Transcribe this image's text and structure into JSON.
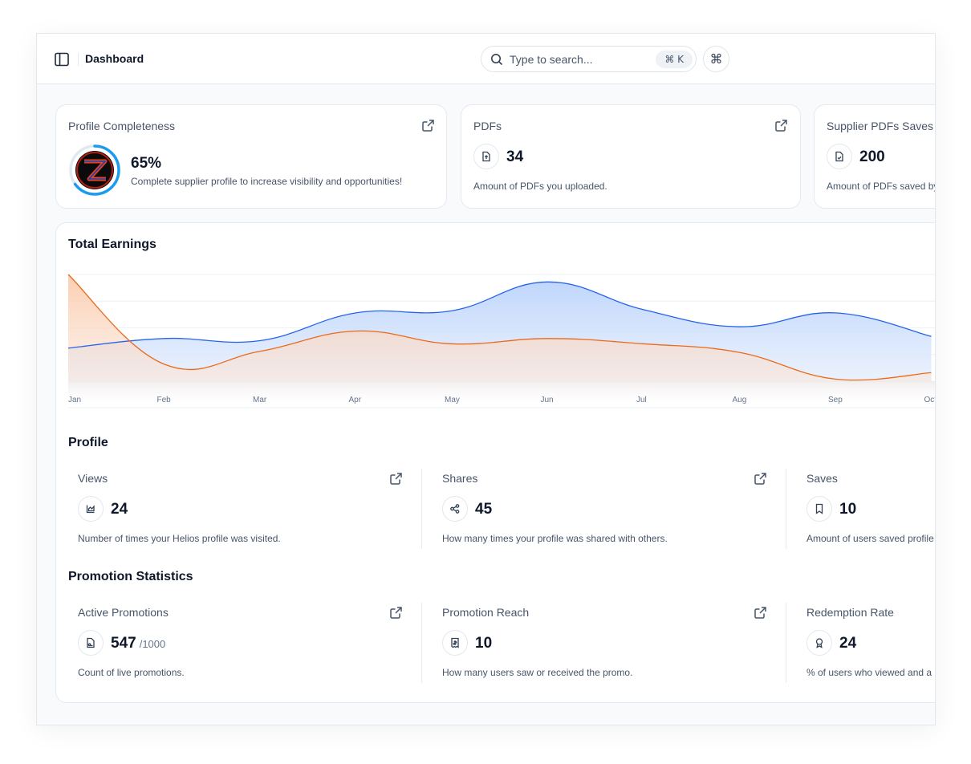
{
  "header": {
    "title": "Dashboard",
    "search_placeholder": "Type to search...",
    "search_shortcut": "⌘ K",
    "command_icon": "⌘"
  },
  "cards": {
    "profile_completeness": {
      "title": "Profile Completeness",
      "value": "65%",
      "progress": 0.65,
      "description": "Complete supplier profile to increase visibility and opportunities!",
      "icon": "logo-avatar"
    },
    "pdfs": {
      "title": "PDFs",
      "value": "34",
      "description": "Amount of PDFs you uploaded.",
      "icon": "file-upload-icon"
    },
    "supplier_pdfs": {
      "title": "Supplier PDFs Saves",
      "value": "200",
      "description": "Amount of PDFs saved by users",
      "icon": "file-save-icon"
    }
  },
  "earnings": {
    "title": "Total Earnings",
    "colors": {
      "blue": "#2563eb",
      "orange": "#ea6a1a"
    }
  },
  "chart_data": {
    "type": "area",
    "title": "Total Earnings",
    "x": [
      "Jan",
      "Feb",
      "Mar",
      "Apr",
      "May",
      "Jun",
      "Jul",
      "Aug",
      "Sep",
      "Oct"
    ],
    "grid": true,
    "series": [
      {
        "values": [
          31,
          40,
          38,
          64,
          66,
          93,
          67,
          51,
          64,
          42
        ]
      },
      {
        "values": [
          100,
          16,
          28,
          47,
          35,
          40,
          35,
          27,
          2,
          8
        ]
      }
    ]
  },
  "profile": {
    "title": "Profile",
    "items": [
      {
        "title": "Views",
        "value": "24",
        "description": "Number of times your Helios profile was visited.",
        "icon": "chart-icon"
      },
      {
        "title": "Shares",
        "value": "45",
        "description": "How many times your profile was shared with others.",
        "icon": "share-icon"
      },
      {
        "title": "Saves",
        "value": "10",
        "description": "Amount of users saved profile",
        "icon": "bookmark-icon"
      }
    ]
  },
  "promotions": {
    "title": "Promotion Statistics",
    "items": [
      {
        "title": "Active Promotions",
        "value": "547",
        "suffix": "/1000",
        "description": "Count of live promotions.",
        "icon": "document-icon"
      },
      {
        "title": "Promotion Reach",
        "value": "10",
        "description": "How many users saw or received the promo.",
        "icon": "receipt-icon"
      },
      {
        "title": "Redemption Rate",
        "value": "24",
        "description": "% of users who viewed and a",
        "icon": "award-icon"
      }
    ]
  }
}
